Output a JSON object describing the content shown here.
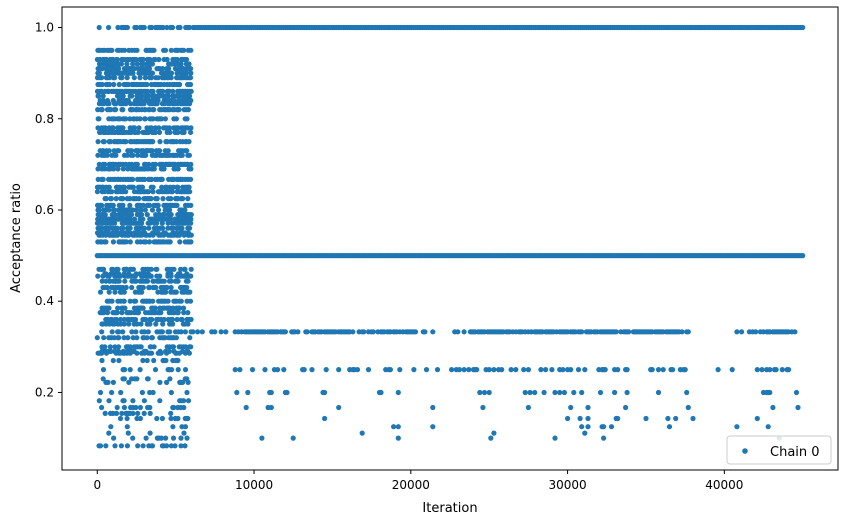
{
  "chart_data": {
    "type": "scatter",
    "title": "",
    "xlabel": "Iteration",
    "ylabel": "Acceptance ratio",
    "xlim": [
      -2250,
      47250
    ],
    "ylim": [
      0.03,
      1.045
    ],
    "x_ticks": [
      0,
      10000,
      20000,
      30000,
      40000
    ],
    "x_tick_labels": [
      "0",
      "10000",
      "20000",
      "30000",
      "40000"
    ],
    "y_ticks": [
      0.2,
      0.4,
      0.6,
      0.8,
      1.0
    ],
    "y_tick_labels": [
      "0.2",
      "0.4",
      "0.6",
      "0.8",
      "1.0"
    ],
    "grid": false,
    "legend_position": "lower-right",
    "marker_color": "#1f77b4",
    "series": [
      {
        "name": "Chain 0",
        "marker": "dot",
        "x_range": [
          0,
          45000
        ],
        "notes_visible": "dense band at 1.0 and 0.5 across all iterations; spread 0.08–0.94 for 0–6000; sparse levels 0.333, 0.25, 0.2, 0.167, 0.143, 0.125, 0.111, 0.1 after 6000",
        "levels": [
          1.0,
          0.5,
          0.333,
          0.25,
          0.2,
          0.167,
          0.143,
          0.125,
          0.111,
          0.1
        ]
      }
    ]
  }
}
